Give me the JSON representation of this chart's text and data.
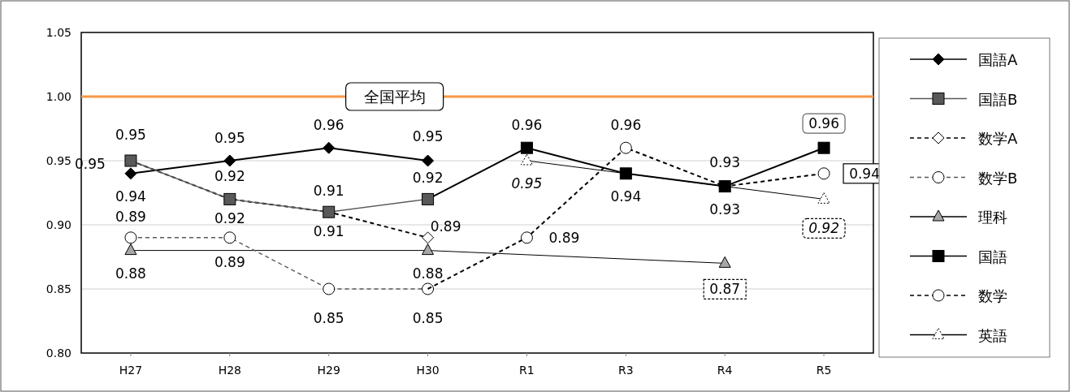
{
  "chart_data": {
    "type": "line",
    "categories": [
      "H27",
      "H28",
      "H29",
      "H30",
      "R1",
      "R3",
      "R4",
      "R5"
    ],
    "ylim": [
      0.8,
      1.05
    ],
    "yticks": [
      {
        "value": 0.8,
        "label": "0.80"
      },
      {
        "value": 0.85,
        "label": "0.85"
      },
      {
        "value": 0.9,
        "label": "0.90"
      },
      {
        "value": 0.95,
        "label": "0.95"
      },
      {
        "value": 1.0,
        "label": "1.00"
      },
      {
        "value": 1.05,
        "label": "1.05"
      }
    ],
    "grid": "y",
    "legend": "right",
    "data_labels": true,
    "ref_lines": [
      {
        "axis": "y",
        "value": 1.0,
        "label": "全国平均",
        "color": "#f79646"
      }
    ],
    "series": [
      {
        "name": "国語A",
        "color": "#000000",
        "marker": "diamond",
        "line_style": "solid",
        "values": [
          0.94,
          0.95,
          0.96,
          0.95,
          null,
          null,
          null,
          null
        ]
      },
      {
        "name": "国語B",
        "color": "#595959",
        "marker": "square",
        "line_style": "solid",
        "values": [
          0.95,
          0.92,
          0.91,
          0.92,
          null,
          null,
          null,
          null
        ]
      },
      {
        "name": "数学A",
        "color": "#000000",
        "marker": "diamond",
        "line_style": "dashed",
        "values": [
          0.95,
          0.92,
          0.91,
          0.89,
          null,
          null,
          null,
          null
        ]
      },
      {
        "name": "数学B",
        "color": "#595959",
        "marker": "circle",
        "line_style": "dashed",
        "values": [
          0.89,
          0.89,
          0.85,
          0.85,
          null,
          null,
          null,
          null
        ]
      },
      {
        "name": "理科",
        "color": "#a6a6a6",
        "marker": "triangle",
        "line_style": "solid",
        "values": [
          0.88,
          null,
          null,
          0.88,
          null,
          null,
          0.87,
          null
        ]
      },
      {
        "name": "国語",
        "color": "#000000",
        "marker": "square",
        "line_style": "solid",
        "values": [
          null,
          null,
          null,
          0.92,
          0.96,
          0.94,
          0.93,
          0.96
        ],
        "value_labels": [
          null,
          null,
          null,
          null,
          "0.96",
          "0.94",
          "0.93",
          "0.96"
        ]
      },
      {
        "name": "数学",
        "color": "#000000",
        "marker": "circle",
        "line_style": "dashed",
        "values": [
          null,
          null,
          null,
          0.85,
          0.89,
          0.96,
          0.93,
          0.94
        ],
        "value_labels": [
          null,
          null,
          null,
          null,
          "0.89",
          "0.96",
          "0.93",
          "0.94"
        ]
      },
      {
        "name": "英語",
        "color": "#ffffff",
        "marker": "triangle",
        "line_style": "solid",
        "values": [
          null,
          null,
          null,
          null,
          0.95,
          null,
          null,
          0.92
        ]
      }
    ]
  }
}
